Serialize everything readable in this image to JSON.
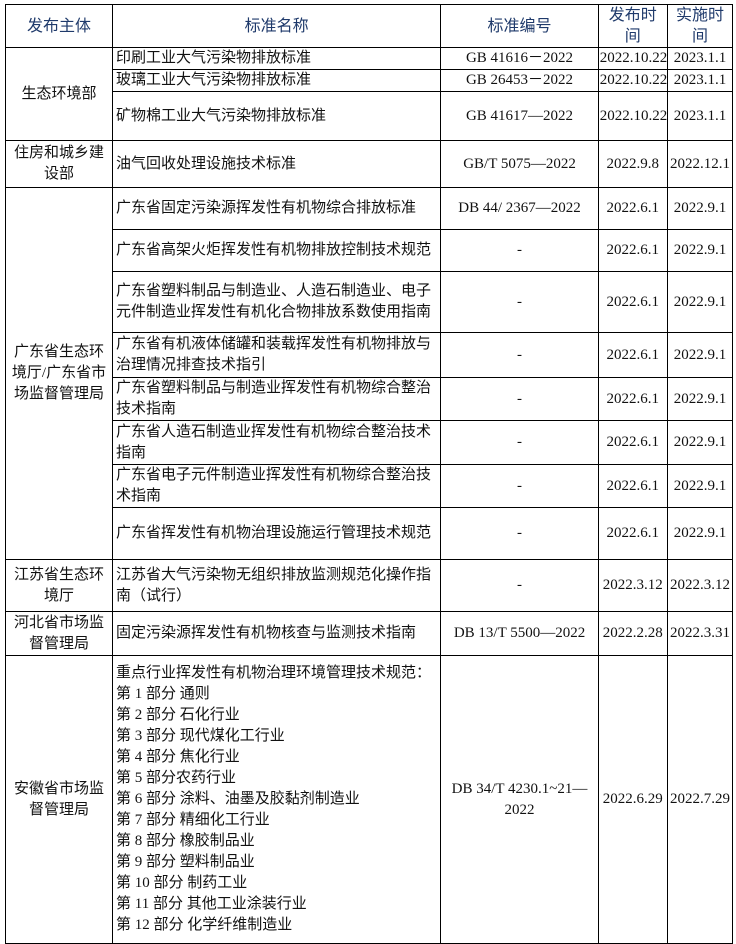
{
  "headers": [
    "发布主体",
    "标准名称",
    "标准编号",
    "发布时间",
    "实施时间"
  ],
  "groups": [
    {
      "issuer": "生态环境部",
      "rows": [
        {
          "name": "印刷工业大气污染物排放标准",
          "code": "GB 41616－2022",
          "issued": "2022.10.22",
          "effective": "2023.1.1"
        },
        {
          "name": "玻璃工业大气污染物排放标准",
          "code": "GB 26453－2022",
          "issued": "2022.10.22",
          "effective": "2023.1.1"
        },
        {
          "name": "矿物棉工业大气污染物排放标准",
          "code": "GB 41617—2022",
          "issued": "2022.10.22",
          "effective": "2023.1.1"
        }
      ]
    },
    {
      "issuer": "住房和城乡建设部",
      "rows": [
        {
          "name": "油气回收处理设施技术标准",
          "code": "GB/T 5075—2022",
          "issued": "2022.9.8",
          "effective": "2022.12.1"
        }
      ]
    },
    {
      "issuer": "广东省生态环境厅/广东省市场监督管理局",
      "rows": [
        {
          "name": "广东省固定污染源挥发性有机物综合排放标准",
          "code": "DB 44/ 2367—2022",
          "issued": "2022.6.1",
          "effective": "2022.9.1"
        },
        {
          "name": "广东省高架火炬挥发性有机物排放控制技术规范",
          "code": "-",
          "issued": "2022.6.1",
          "effective": "2022.9.1"
        },
        {
          "name": "广东省塑料制品与制造业、人造石制造业、电子元件制造业挥发性有机化合物排放系数使用指南",
          "code": "-",
          "issued": "2022.6.1",
          "effective": "2022.9.1"
        },
        {
          "name": "广东省有机液体储罐和装载挥发性有机物排放与治理情况排查技术指引",
          "code": "-",
          "issued": "2022.6.1",
          "effective": "2022.9.1"
        },
        {
          "name": "广东省塑料制品与制造业挥发性有机物综合整治技术指南",
          "code": "-",
          "issued": "2022.6.1",
          "effective": "2022.9.1"
        },
        {
          "name": "广东省人造石制造业挥发性有机物综合整治技术指南",
          "code": "-",
          "issued": "2022.6.1",
          "effective": "2022.9.1"
        },
        {
          "name": "广东省电子元件制造业挥发性有机物综合整治技术指南",
          "code": "-",
          "issued": "2022.6.1",
          "effective": "2022.9.1"
        },
        {
          "name": "广东省挥发性有机物治理设施运行管理技术规范",
          "code": "-",
          "issued": "2022.6.1",
          "effective": "2022.9.1"
        }
      ]
    },
    {
      "issuer": "江苏省生态环境厅",
      "rows": [
        {
          "name": "江苏省大气污染物无组织排放监测规范化操作指南（试行）",
          "code": "-",
          "issued": "2022.3.12",
          "effective": "2022.3.12"
        }
      ]
    },
    {
      "issuer": "河北省市场监督管理局",
      "rows": [
        {
          "name": "固定污染源挥发性有机物核查与监测技术指南",
          "code": "DB 13/T 5500—2022",
          "issued": "2022.2.28",
          "effective": "2022.3.31"
        }
      ]
    },
    {
      "issuer": "安徽省市场监督管理局",
      "rows": [
        {
          "name": "重点行业挥发性有机物治理环境管理技术规范：\n第 1 部分  通则\n第 2 部分  石化行业\n第 3 部分  现代煤化工行业\n第 4 部分  焦化行业\n第 5 部分农药行业\n第 6 部分  涂料、油墨及胶黏剂制造业\n第 7 部分  精细化工行业\n第 8 部分  橡胶制品业\n第 9 部分  塑料制品业\n第 10 部分  制药工业\n第 11 部分  其他工业涂装行业\n第 12 部分  化学纤维制造业",
          "code": "DB 34/T 4230.1~21—2022",
          "issued": "2022.6.29",
          "effective": "2022.7.29"
        }
      ]
    }
  ]
}
